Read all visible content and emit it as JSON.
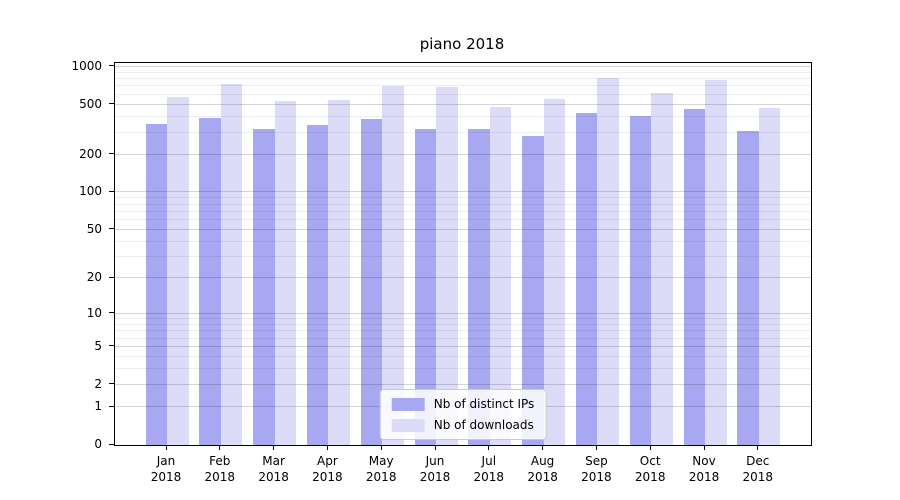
{
  "title": "piano 2018",
  "chart_data": {
    "type": "bar",
    "title": "piano 2018",
    "categories": [
      "Jan 2018",
      "Feb 2018",
      "Mar 2018",
      "Apr 2018",
      "May 2018",
      "Jun 2018",
      "Jul 2018",
      "Aug 2018",
      "Sep 2018",
      "Oct 2018",
      "Nov 2018",
      "Dec 2018"
    ],
    "x_tick_line1": [
      "Jan",
      "Feb",
      "Mar",
      "Apr",
      "May",
      "Jun",
      "Jul",
      "Aug",
      "Sep",
      "Oct",
      "Nov",
      "Dec"
    ],
    "x_tick_line2": "2018",
    "series": [
      {
        "name": "Nb of distinct IPs",
        "color": "#a8a8f2",
        "values": [
          355,
          395,
          320,
          345,
          385,
          320,
          320,
          285,
          430,
          410,
          460,
          310
        ]
      },
      {
        "name": "Nb of downloads",
        "color": "#dcdcf9",
        "values": [
          575,
          730,
          535,
          545,
          705,
          690,
          485,
          555,
          815,
          620,
          790,
          470
        ]
      }
    ],
    "xlabel": "",
    "ylabel": "",
    "yticks": [
      0,
      1,
      2,
      5,
      10,
      20,
      50,
      100,
      200,
      500,
      1000
    ],
    "ylim": [
      0,
      1076
    ],
    "y_scale": "symlog: position proportional to log10(1+v)",
    "grid": "horizontal major + minor gridlines",
    "legend_position": "inside lower center"
  },
  "colors": {
    "background": "#ffffff",
    "axis": "#000000",
    "grid_major": "#d6d6d6",
    "grid_minor": "#ededed",
    "bar_dark": "#a8a8f2",
    "bar_light": "#dcdcf9"
  }
}
